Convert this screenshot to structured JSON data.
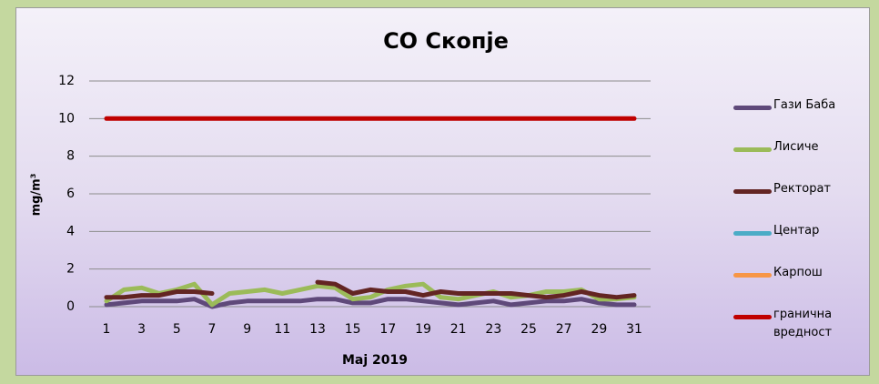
{
  "chart_data": {
    "type": "line",
    "title": "CO Скопје",
    "x_label": "Мај 2019",
    "y_label": "mg/m³",
    "categories": [
      1,
      null,
      3,
      null,
      5,
      null,
      7,
      null,
      9,
      null,
      11,
      null,
      13,
      null,
      15,
      null,
      17,
      null,
      19,
      null,
      21,
      null,
      23,
      null,
      25,
      null,
      27,
      null,
      29,
      null,
      31
    ],
    "ylim": [
      0,
      12
    ],
    "yticks": [
      0,
      2,
      4,
      6,
      8,
      10,
      12
    ],
    "grid": true,
    "series": [
      {
        "name": "Гази Баба",
        "color": "#5f497a",
        "values": [
          0.1,
          0.2,
          0.3,
          0.3,
          0.3,
          0.4,
          0.0,
          0.2,
          0.3,
          0.3,
          0.3,
          0.3,
          0.4,
          0.4,
          0.2,
          0.2,
          0.4,
          0.4,
          0.3,
          0.2,
          0.1,
          0.2,
          0.3,
          0.1,
          0.2,
          0.3,
          0.3,
          0.4,
          0.2,
          0.1,
          0.1
        ]
      },
      {
        "name": "Лисиче",
        "color": "#9bbb59",
        "values": [
          0.3,
          0.9,
          1.0,
          0.7,
          0.9,
          1.2,
          0.1,
          0.7,
          0.8,
          0.9,
          0.7,
          0.9,
          1.1,
          1.0,
          0.4,
          0.5,
          0.9,
          1.1,
          1.2,
          0.5,
          0.4,
          0.6,
          0.8,
          0.5,
          0.6,
          0.8,
          0.8,
          0.9,
          0.4,
          0.4,
          0.5
        ]
      },
      {
        "name": "Ректорат",
        "color": "#632523",
        "values": [
          0.5,
          0.5,
          0.6,
          0.6,
          0.8,
          0.8,
          0.7,
          null,
          null,
          null,
          null,
          null,
          1.3,
          1.2,
          0.7,
          0.9,
          0.8,
          0.8,
          0.6,
          0.8,
          0.7,
          0.7,
          0.7,
          0.7,
          0.6,
          0.5,
          0.6,
          0.8,
          0.6,
          0.5,
          0.6
        ]
      },
      {
        "name": "Центар",
        "color": "#4bacc6",
        "values": [
          null,
          null,
          null,
          null,
          null,
          null,
          null,
          null,
          null,
          null,
          null,
          null,
          null,
          null,
          null,
          null,
          null,
          null,
          null,
          null,
          null,
          null,
          null,
          null,
          null,
          null,
          null,
          null,
          null,
          null,
          null
        ]
      },
      {
        "name": "Карпош",
        "color": "#f79646",
        "values": [
          null,
          null,
          null,
          null,
          null,
          null,
          null,
          null,
          null,
          null,
          null,
          null,
          null,
          null,
          null,
          null,
          null,
          null,
          null,
          null,
          null,
          null,
          null,
          null,
          null,
          null,
          null,
          null,
          null,
          null,
          null
        ]
      },
      {
        "name": "гранична вредност",
        "color": "#c00000",
        "values": [
          10,
          10,
          10,
          10,
          10,
          10,
          10,
          10,
          10,
          10,
          10,
          10,
          10,
          10,
          10,
          10,
          10,
          10,
          10,
          10,
          10,
          10,
          10,
          10,
          10,
          10,
          10,
          10,
          10,
          10,
          10
        ]
      }
    ]
  }
}
